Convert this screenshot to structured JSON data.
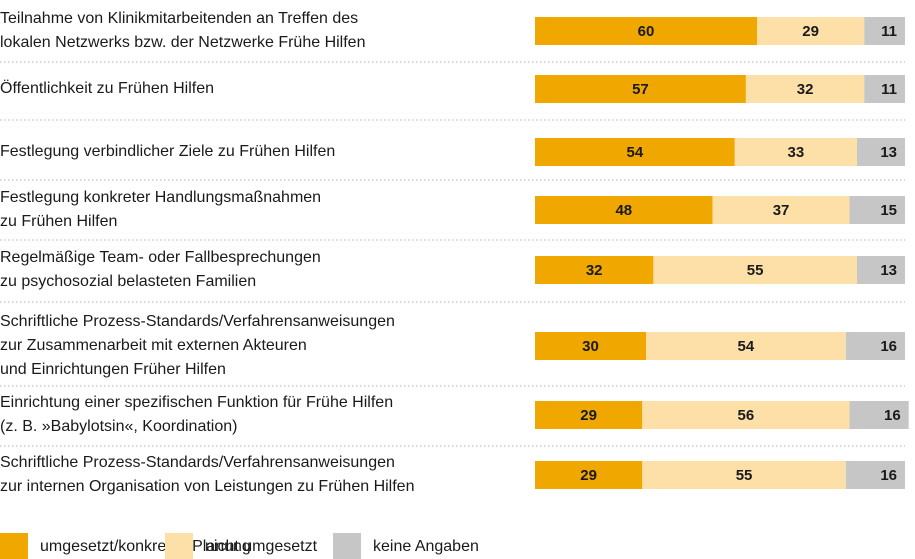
{
  "chart_data": {
    "type": "stacked-bar-horizontal",
    "categories": [
      "Teilnahme von Klinikmitarbeitenden an Treffen des\nlokalen Netzwerks bzw. der Netzwerke Frühe Hilfen",
      "Öffentlichkeit zu Frühen Hilfen",
      "Festlegung verbindlicher Ziele zu Frühen Hilfen",
      "Festlegung konkreter Handlungsmaßnahmen\nzu Frühen Hilfen",
      "Regelmäßige Team- oder Fallbesprechungen\nzu psychosozial belasteten Familien",
      "Schriftliche Prozess-Standards/Verfahrensanweisungen\nzur Zusammenarbeit mit externen Akteuren\nund Einrichtungen Früher Hilfen",
      "Einrichtung einer spezifischen Funktion für Frühe Hilfen\n(z. B. »Babylotsin«, Koordination)",
      "Schriftliche Prozess-Standards/Verfahrensanweisungen\nzur internen Organisation von Leistungen zu Frühen Hilfen"
    ],
    "series": [
      {
        "name": "umgesetzt/konkret in Planung",
        "color": "#f0a800",
        "values": [
          60,
          57,
          54,
          48,
          32,
          30,
          29,
          29
        ]
      },
      {
        "name": "nicht umgesetzt",
        "color": "#fde0a8",
        "values": [
          29,
          32,
          33,
          37,
          55,
          54,
          56,
          55
        ]
      },
      {
        "name": "keine Angaben",
        "color": "#c6c6c6",
        "values": [
          11,
          11,
          13,
          15,
          13,
          16,
          16,
          16
        ]
      }
    ],
    "xlim": [
      0,
      100
    ],
    "legend": "bottom-left"
  }
}
